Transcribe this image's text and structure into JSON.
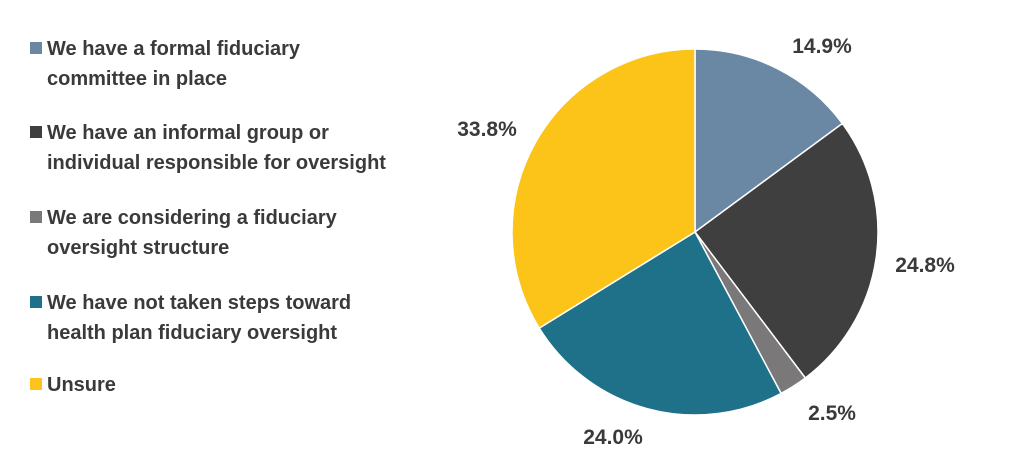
{
  "chart_data": {
    "type": "pie",
    "categories": [
      "We have a formal fiduciary\ncommittee in place",
      "We have an informal group or\nindividual responsible for oversight",
      "We are considering a fiduciary\noversight structure",
      "We have not taken steps toward\nhealth plan fiduciary oversight",
      "Unsure"
    ],
    "values": [
      14.9,
      24.8,
      2.5,
      24.0,
      33.8
    ],
    "value_labels": [
      "14.9%",
      "24.8%",
      "2.5%",
      "24.0%",
      "33.8%"
    ],
    "colors": [
      "#6a88a4",
      "#3f3f3f",
      "#7a7878",
      "#1e7188",
      "#fcc419"
    ],
    "legend_position": "left",
    "title": ""
  }
}
